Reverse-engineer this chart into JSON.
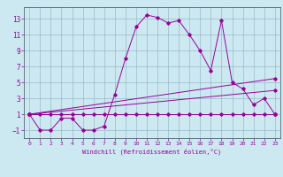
{
  "xlabel": "Windchill (Refroidissement éolien,°C)",
  "background_color": "#cce8f0",
  "grid_color": "#99bbcc",
  "line_color": "#990099",
  "spine_color": "#556677",
  "xlim": [
    -0.5,
    23.5
  ],
  "ylim": [
    -2,
    14.5
  ],
  "xticks": [
    0,
    1,
    2,
    3,
    4,
    5,
    6,
    7,
    8,
    9,
    10,
    11,
    12,
    13,
    14,
    15,
    16,
    17,
    18,
    19,
    20,
    21,
    22,
    23
  ],
  "yticks": [
    -1,
    1,
    3,
    5,
    7,
    9,
    11,
    13
  ],
  "series1_x": [
    0,
    1,
    2,
    3,
    4,
    5,
    6,
    7,
    8,
    9,
    10,
    11,
    12,
    13,
    14,
    15,
    16,
    17,
    18,
    19,
    20,
    21,
    22,
    23
  ],
  "series1_y": [
    1,
    -1,
    -1,
    0.5,
    0.5,
    -1,
    -1,
    -0.5,
    3.5,
    8,
    12,
    13.5,
    13.2,
    12.5,
    12.8,
    11,
    9,
    6.5,
    12.8,
    5,
    4.2,
    2.2,
    3,
    1
  ],
  "series2_x": [
    0,
    1,
    2,
    3,
    4,
    5,
    6,
    7,
    8,
    9,
    10,
    11,
    12,
    13,
    14,
    15,
    16,
    17,
    18,
    19,
    20,
    21,
    22,
    23
  ],
  "series2_y": [
    1,
    1,
    1,
    1,
    1,
    1,
    1,
    1,
    1,
    1,
    1,
    1,
    1,
    1,
    1,
    1,
    1,
    1,
    1,
    1,
    1,
    1,
    1,
    1
  ],
  "series3_x": [
    0,
    23
  ],
  "series3_y": [
    1,
    1
  ],
  "series4_x": [
    0,
    23
  ],
  "series4_y": [
    1,
    4
  ],
  "series5_x": [
    0,
    23
  ],
  "series5_y": [
    1,
    5.5
  ]
}
